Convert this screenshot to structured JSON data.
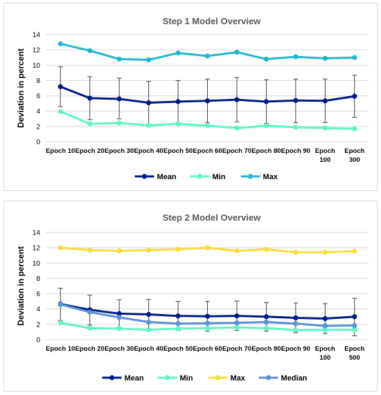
{
  "chart_data": [
    {
      "type": "line",
      "title": "Step 1 Model Overview",
      "ylabel": "Deviation in percent",
      "xlabel": "",
      "ylim": [
        0,
        14
      ],
      "yticks": [
        0,
        2,
        4,
        6,
        8,
        10,
        12,
        14
      ],
      "grid": true,
      "legend": "bottom",
      "categories": [
        [
          "Epoch 10"
        ],
        [
          "Epoch 20"
        ],
        [
          "Epoch 30"
        ],
        [
          "Epoch 40"
        ],
        [
          "Epoch 50"
        ],
        [
          "Epoch 60"
        ],
        [
          "Epoch 70"
        ],
        [
          "Epoch 80"
        ],
        [
          "Epoch 90"
        ],
        [
          "Epoch",
          "100"
        ],
        [
          "Epoch",
          "300"
        ]
      ],
      "series": [
        {
          "name": "Mean",
          "color": "#001a80",
          "values": [
            7.2,
            5.7,
            5.6,
            5.1,
            5.25,
            5.35,
            5.5,
            5.25,
            5.4,
            5.35,
            5.95
          ],
          "error_low": [
            4.6,
            2.9,
            3.0,
            2.3,
            2.4,
            2.5,
            2.6,
            2.4,
            2.5,
            2.5,
            3.2
          ],
          "error_high": [
            9.8,
            8.5,
            8.3,
            7.9,
            8.0,
            8.2,
            8.4,
            8.1,
            8.2,
            8.2,
            8.7
          ]
        },
        {
          "name": "Min",
          "color": "#5df5c8",
          "values": [
            3.95,
            2.35,
            2.45,
            2.15,
            2.35,
            2.1,
            1.8,
            2.1,
            1.9,
            1.8,
            1.7
          ]
        },
        {
          "name": "Max",
          "color": "#1fb8cf",
          "values": [
            12.8,
            11.9,
            10.8,
            10.7,
            11.6,
            11.2,
            11.7,
            10.8,
            11.1,
            10.9,
            11.0
          ]
        }
      ]
    },
    {
      "type": "line",
      "title": "Step 2 Model Overview",
      "ylabel": "Deviation in percent",
      "xlabel": "",
      "ylim": [
        0,
        14
      ],
      "yticks": [
        0,
        2,
        4,
        6,
        8,
        10,
        12,
        14
      ],
      "grid": true,
      "legend": "bottom",
      "categories": [
        [
          "Epoch 10"
        ],
        [
          "Epoch 20"
        ],
        [
          "Epoch 30"
        ],
        [
          "Epoch 40"
        ],
        [
          "Epoch 50"
        ],
        [
          "Epoch 60"
        ],
        [
          "Epoch 70"
        ],
        [
          "Epoch 80"
        ],
        [
          "Epoch 90"
        ],
        [
          "Epoch",
          "100"
        ],
        [
          "Epoch",
          "500"
        ]
      ],
      "series": [
        {
          "name": "Mean",
          "color": "#001a80",
          "values": [
            4.65,
            3.9,
            3.4,
            3.3,
            3.1,
            3.05,
            3.1,
            3.0,
            2.85,
            2.75,
            3.0
          ],
          "error_low": [
            2.5,
            1.9,
            1.6,
            1.3,
            1.2,
            1.1,
            1.2,
            1.1,
            0.9,
            0.8,
            0.5
          ],
          "error_high": [
            6.7,
            5.8,
            5.2,
            5.25,
            5.0,
            5.0,
            5.05,
            4.85,
            4.8,
            4.7,
            5.4
          ]
        },
        {
          "name": "Min",
          "color": "#5df5c8",
          "values": [
            2.2,
            1.5,
            1.45,
            1.3,
            1.45,
            1.5,
            1.6,
            1.5,
            1.25,
            1.3,
            1.3
          ]
        },
        {
          "name": "Max",
          "color": "#f7dc3b",
          "values": [
            12.0,
            11.7,
            11.6,
            11.7,
            11.8,
            12.0,
            11.6,
            11.8,
            11.4,
            11.4,
            11.55
          ]
        },
        {
          "name": "Median",
          "color": "#5b8fd6",
          "values": [
            4.6,
            3.6,
            2.9,
            2.3,
            2.1,
            2.15,
            2.2,
            2.3,
            2.1,
            1.8,
            1.85
          ]
        }
      ]
    }
  ]
}
